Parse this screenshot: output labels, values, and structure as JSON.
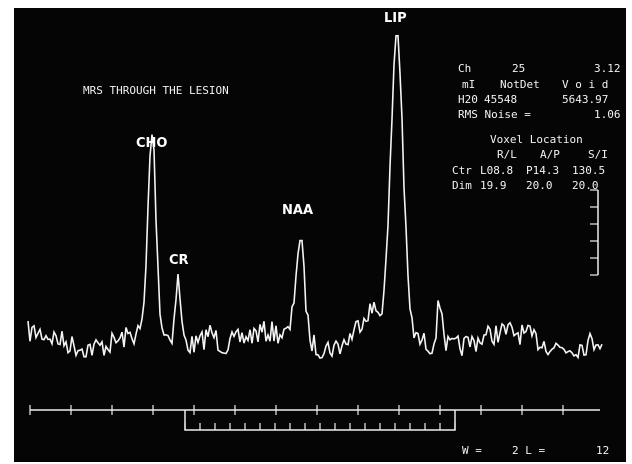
{
  "title": "MRS THROUGH THE LESION",
  "peaks": [
    "CHO",
    "CR",
    "NAA",
    "LIP"
  ],
  "info": [
    [
      "Ch",
      "25",
      "3.12"
    ],
    [
      "mI",
      "NotDet",
      "V o i d"
    ],
    [
      "H20",
      "45548",
      "5643.97"
    ],
    [
      "RMS Noise =",
      "1.06"
    ]
  ],
  "voxel": {
    "title": "Voxel Location",
    "headers": [
      "R/L",
      "A/P",
      "S/I"
    ],
    "rows": [
      [
        "Ctr",
        "L08.8",
        "P14.3",
        "130.5"
      ],
      [
        "Dim",
        "19.9",
        "20.0",
        "20.0"
      ]
    ]
  },
  "footer": [
    "W =",
    "2 L =",
    "12"
  ]
}
